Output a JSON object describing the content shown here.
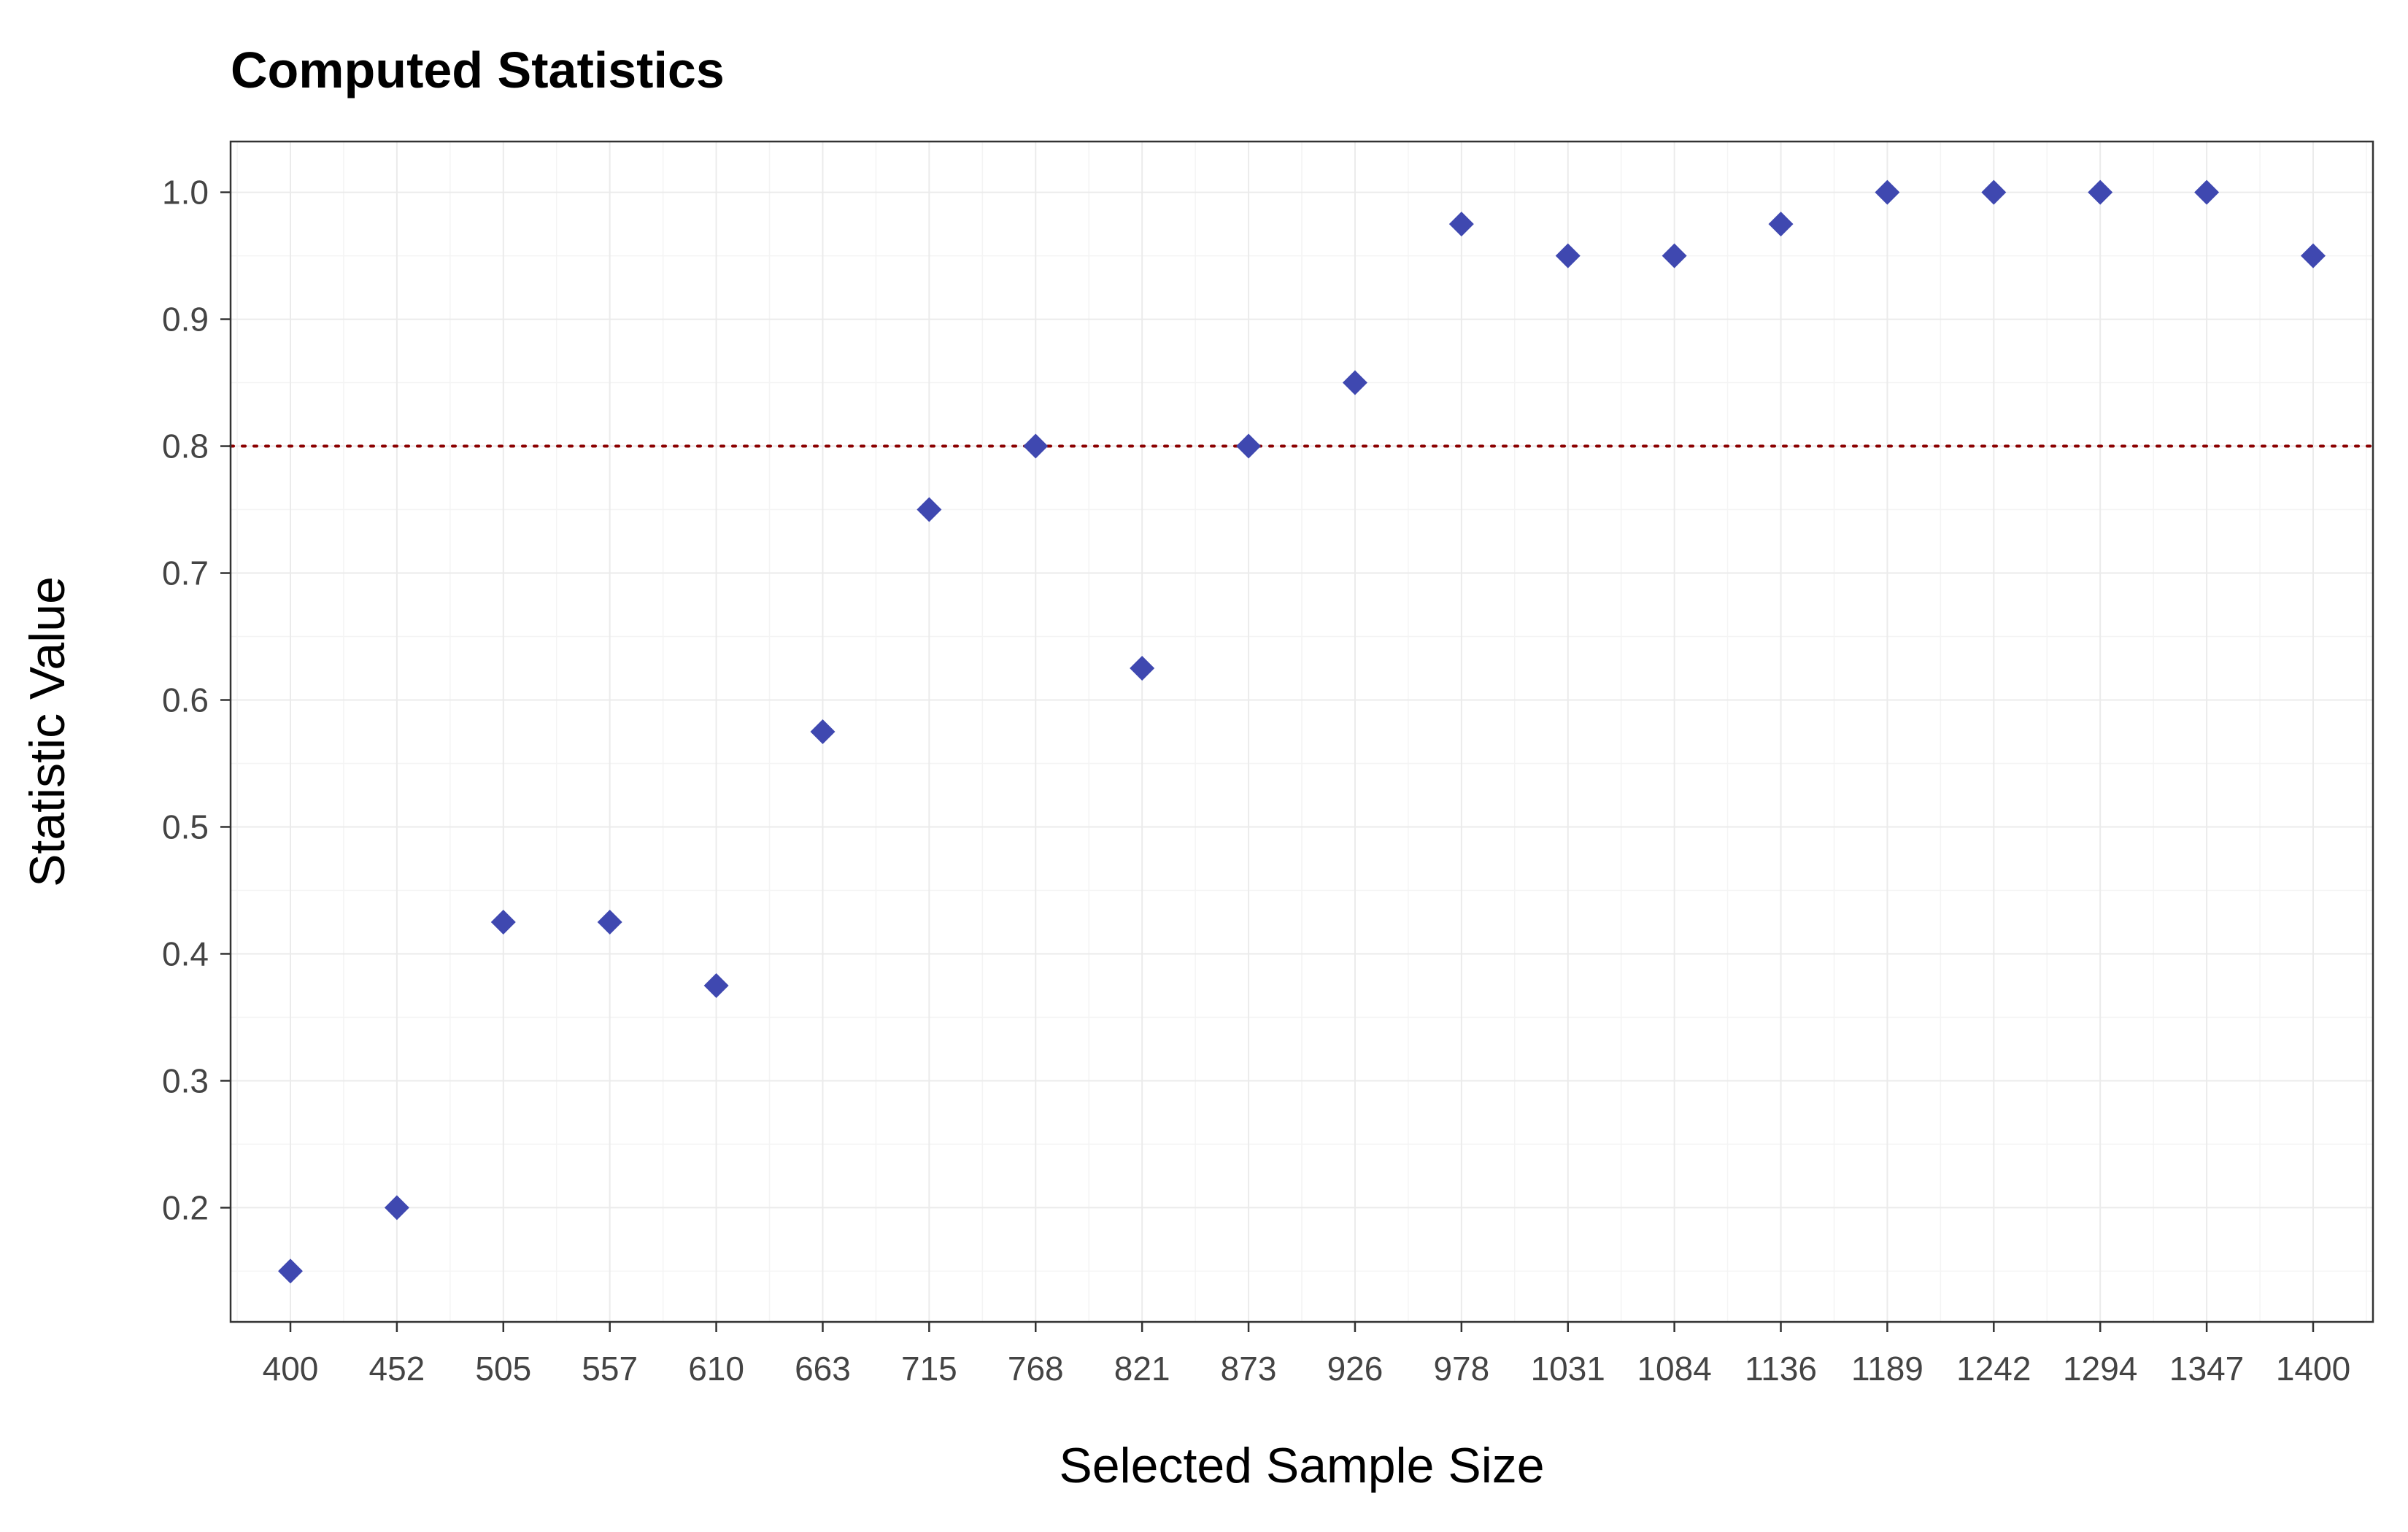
{
  "chart_data": {
    "type": "scatter",
    "title": "Computed Statistics",
    "xlabel": "Selected Sample Size",
    "ylabel": "Statistic Value",
    "x_tick_labels": [
      "400",
      "452",
      "505",
      "557",
      "610",
      "663",
      "715",
      "768",
      "821",
      "873",
      "926",
      "978",
      "1031",
      "1084",
      "1136",
      "1189",
      "1242",
      "1294",
      "1347",
      "1400"
    ],
    "y_ticks": [
      0.2,
      0.3,
      0.4,
      0.5,
      0.6,
      0.7,
      0.8,
      0.9,
      1.0
    ],
    "y_tick_labels": [
      "0.2",
      "0.3",
      "0.4",
      "0.5",
      "0.6",
      "0.7",
      "0.8",
      "0.9",
      "1.0"
    ],
    "ylim": [
      0.11,
      1.04
    ],
    "grid": true,
    "reference_line": {
      "y": 0.8,
      "style": "dotted",
      "color": "#8b0000"
    },
    "point_shape": "diamond",
    "point_color": "#3f48b0",
    "points": [
      {
        "x": "400",
        "y": 0.15
      },
      {
        "x": "452",
        "y": 0.2
      },
      {
        "x": "505",
        "y": 0.425
      },
      {
        "x": "557",
        "y": 0.425
      },
      {
        "x": "610",
        "y": 0.375
      },
      {
        "x": "663",
        "y": 0.575
      },
      {
        "x": "715",
        "y": 0.75
      },
      {
        "x": "768",
        "y": 0.8
      },
      {
        "x": "821",
        "y": 0.625
      },
      {
        "x": "873",
        "y": 0.8
      },
      {
        "x": "926",
        "y": 0.85
      },
      {
        "x": "978",
        "y": 0.975
      },
      {
        "x": "1031",
        "y": 0.95
      },
      {
        "x": "1084",
        "y": 0.95
      },
      {
        "x": "1136",
        "y": 0.975
      },
      {
        "x": "1189",
        "y": 1.0
      },
      {
        "x": "1242",
        "y": 1.0
      },
      {
        "x": "1294",
        "y": 1.0
      },
      {
        "x": "1347",
        "y": 1.0
      },
      {
        "x": "1400",
        "y": 0.95
      }
    ]
  }
}
